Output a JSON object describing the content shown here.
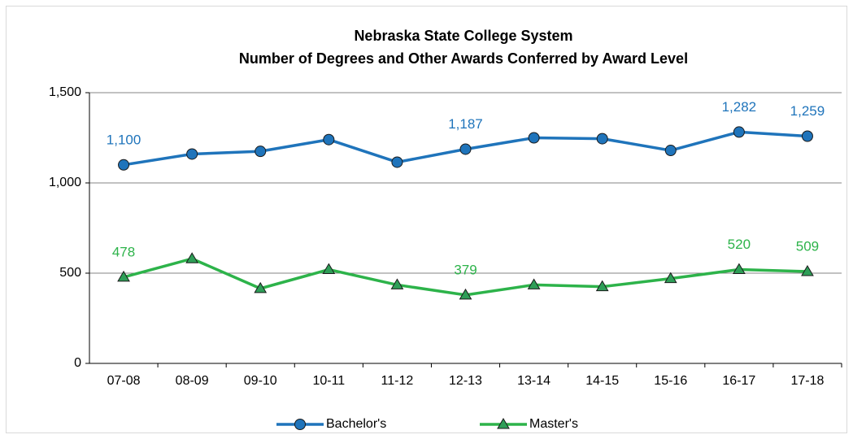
{
  "chart_data": {
    "type": "line",
    "title": "Nebraska State College System",
    "subtitle": "Number of Degrees and Other Awards Conferred by Award Level",
    "categories": [
      "07-08",
      "08-09",
      "09-10",
      "10-11",
      "11-12",
      "12-13",
      "13-14",
      "14-15",
      "15-16",
      "16-17",
      "17-18"
    ],
    "series": [
      {
        "name": "Bachelor's",
        "color": "#1f74bb",
        "marker": "circle",
        "values": [
          1100,
          1160,
          1175,
          1240,
          1115,
          1187,
          1250,
          1245,
          1180,
          1282,
          1259
        ],
        "value_labels": [
          "1,100",
          null,
          null,
          null,
          null,
          "1,187",
          null,
          null,
          null,
          "1,282",
          "1,259"
        ]
      },
      {
        "name": "Master's",
        "color": "#2db34a",
        "marker": "triangle",
        "values": [
          478,
          580,
          415,
          520,
          435,
          379,
          435,
          425,
          470,
          520,
          509
        ],
        "value_labels": [
          "478",
          null,
          null,
          null,
          null,
          "379",
          null,
          null,
          null,
          "520",
          "509"
        ]
      }
    ],
    "ylim": [
      0,
      1500
    ],
    "yticks": [
      0,
      500,
      {
        "value": 1000,
        "label": "1,000"
      },
      {
        "value": 1500,
        "label": "1,500"
      }
    ],
    "grid": true,
    "legend": "bottom"
  }
}
